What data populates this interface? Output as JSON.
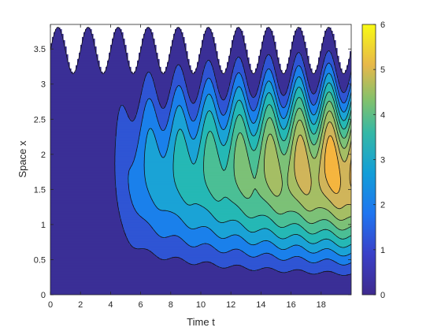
{
  "chart_data": {
    "type": "contour",
    "xlabel": "Time t",
    "ylabel": "Space x",
    "xlim": [
      0,
      20
    ],
    "ylim": [
      0,
      3.85
    ],
    "x_ticks": [
      "0",
      "2",
      "4",
      "6",
      "8",
      "10",
      "12",
      "14",
      "16",
      "18"
    ],
    "y_ticks": [
      "0",
      "0.5",
      "1",
      "1.5",
      "2",
      "2.5",
      "3",
      "3.5"
    ],
    "colorbar": {
      "range": [
        0,
        6
      ],
      "ticks": [
        "0",
        "1",
        "2",
        "3",
        "4",
        "5",
        "6"
      ]
    },
    "levels": [
      0,
      0.5,
      1,
      1.5,
      2,
      2.5,
      3,
      3.5,
      4,
      4.5,
      5,
      5.5
    ],
    "level_colors": [
      "#3a2f96",
      "#2f55d4",
      "#1a80eb",
      "#1aa3d6",
      "#25b8b5",
      "#4bbf95",
      "#7cc177",
      "#a5be64",
      "#d0b55a",
      "#f5b53f",
      "#f3d82c",
      "#f2f418"
    ],
    "domain_boundary": "x_max(t) = 3.48 + 0.33*sin(pi*t)",
    "max_value": 5.8
  }
}
